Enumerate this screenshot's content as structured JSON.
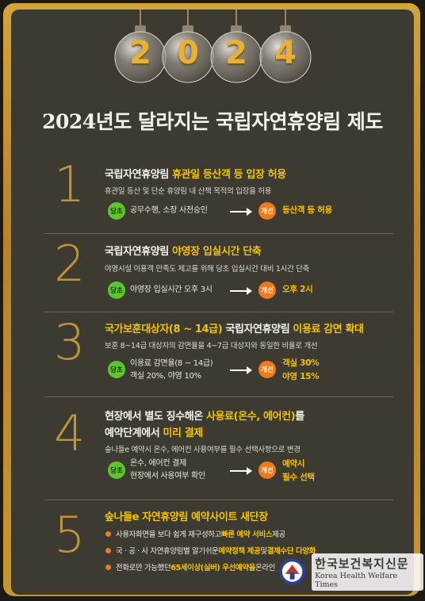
{
  "ornaments": [
    "2",
    "0",
    "2",
    "4"
  ],
  "title": "2024년도 달라지는 국립자연휴양림 제도",
  "sections": [
    {
      "number": "1",
      "heading_pre": "국립자연휴양림 ",
      "heading_hi": "휴관일 등산객 등 입장 허용",
      "heading_post": "",
      "desc": "휴관일 등산 및 단순 휴양림 내 산책 목적의 입장을 허용",
      "before_tag": "당초",
      "before_lines": [
        "공무수행, 소장 사전승인"
      ],
      "after_tag": "개선",
      "after_lines": [
        "등산객 등 허용"
      ]
    },
    {
      "number": "2",
      "heading_pre": "국립자연휴양림 ",
      "heading_hi": "야영장 입실시간 단축",
      "heading_post": "",
      "desc": "야영시설 이용객 만족도 제고를 위해 당초 입실시간 대비 1시간 단축",
      "before_tag": "당초",
      "before_lines": [
        "야영장 입실시간 오후 3시"
      ],
      "after_tag": "개선",
      "after_lines": [
        "오후 2시"
      ]
    },
    {
      "number": "3",
      "heading_pre": "",
      "heading_hi": "국가보훈대상자(8 ~ 14급)",
      "heading_post": " 국립자연휴양림 ",
      "heading_hi2": "이용료 감면 확대",
      "desc": "보훈 8~14급 대상자의 감면율을 4~7급 대상자와 동일한 비율로 개선",
      "before_tag": "당초",
      "before_lines": [
        "이용료 감면율(8 ~ 14급)",
        "객실 20%, 야영 10%"
      ],
      "after_tag": "개선",
      "after_lines": [
        "객실 30%",
        "야영 15%"
      ]
    },
    {
      "number": "4",
      "heading_line1_pre": "현장에서 별도 징수해온 ",
      "heading_line1_hi": "사용료(온수, 에어컨)",
      "heading_line1_post": "를",
      "heading_line2_pre": "예약단계에서 ",
      "heading_line2_hi": "미리 결제",
      "desc": "숲나들e 예약시 온수, 에어컨 사용여부를 필수 선택사항으로 변경",
      "before_tag": "당초",
      "before_lines": [
        "온수, 에어컨 결제",
        "현장에서 사용여부 확인"
      ],
      "after_tag": "개선",
      "after_lines": [
        "예약시",
        "필수 선택"
      ]
    },
    {
      "number": "5",
      "heading_pre": "숲나들e 자연휴양림 예약사이트 ",
      "heading_hi": "새단장",
      "bullets": [
        {
          "a": "사용자화면을 보다 쉽게 재구성하고 ",
          "b": "빠른 예약 서비스",
          "c": " 제공",
          "d": "",
          "e": ""
        },
        {
          "a": "국 · 공 · 사 자연휴양림별 알기쉬운 ",
          "b": "예약정책 제공",
          "c": " 및 ",
          "d": "결제수단 다양화",
          "e": ""
        },
        {
          "a": "전화로만 가능했던 ",
          "b": "65세이상(실버) 우선예약을",
          "c": " 온라인",
          "d": "",
          "e": ""
        }
      ]
    }
  ],
  "watermark": {
    "name_ko": "한국보건복지신문",
    "name_en": "Korea Health Welfare Times"
  },
  "colors": {
    "gold": "#c49a3a",
    "highlight": "#f2c400",
    "panel": "#3d3a32",
    "before": "#5fc52e",
    "after": "#ee7a1c"
  }
}
